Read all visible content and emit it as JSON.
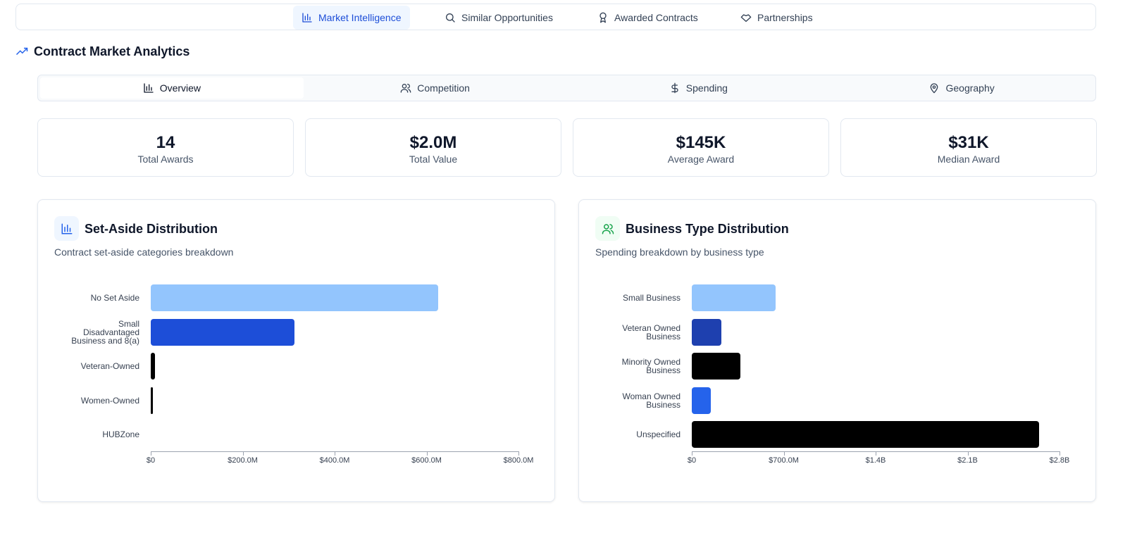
{
  "nav_tabs": [
    "Market Intelligence",
    "Similar Opportunities",
    "Awarded Contracts",
    "Partnerships"
  ],
  "section_title": "Contract Market Analytics",
  "sub_tabs": [
    "Overview",
    "Competition",
    "Spending",
    "Geography"
  ],
  "stats": [
    {
      "value": 14,
      "label": "Total Awards"
    },
    {
      "value": "$2.0M",
      "label": "Total Value"
    },
    {
      "value": "$145K",
      "label": "Average Award"
    },
    {
      "value": "$31K",
      "label": "Median Award"
    }
  ],
  "chart_data": [
    {
      "type": "bar",
      "title": "Set-Aside Distribution",
      "subtitle": "Contract set-aside categories breakdown",
      "categories": [
        "No Set Aside",
        "Small Disadvantaged Business and 8(a)",
        "Veteran-Owned",
        "Women-Owned",
        "HUBZone"
      ],
      "values": [
        625000000,
        313000000,
        9000000,
        5000000,
        0
      ],
      "colors": [
        "#93c5fd",
        "#1d4ed8",
        "#000000",
        "#000000",
        "#60a5fa"
      ],
      "xlim": [
        0,
        800000000
      ],
      "xticks": [
        {
          "value": 0,
          "label": "$0"
        },
        {
          "value": 200000000,
          "label": "$200.0M"
        },
        {
          "value": 400000000,
          "label": "$400.0M"
        },
        {
          "value": 600000000,
          "label": "$600.0M"
        },
        {
          "value": 800000000,
          "label": "$800.0M"
        }
      ]
    },
    {
      "type": "bar",
      "title": "Business Type Distribution",
      "subtitle": "Spending breakdown by business type",
      "categories": [
        "Small Business",
        "Veteran Owned Business",
        "Minority Owned Business",
        "Woman Owned Business",
        "Unspecified"
      ],
      "values": [
        637000000,
        225000000,
        369000000,
        145000000,
        2645000000
      ],
      "colors": [
        "#93c5fd",
        "#1e40af",
        "#000000",
        "#2563eb",
        "#000000"
      ],
      "xlim": [
        0,
        2800000000
      ],
      "xticks": [
        {
          "value": 0,
          "label": "$0"
        },
        {
          "value": 700000000,
          "label": "$700.0M"
        },
        {
          "value": 1400000000,
          "label": "$1.4B"
        },
        {
          "value": 2100000000,
          "label": "$2.1B"
        },
        {
          "value": 2800000000,
          "label": "$2.8B"
        }
      ]
    }
  ]
}
